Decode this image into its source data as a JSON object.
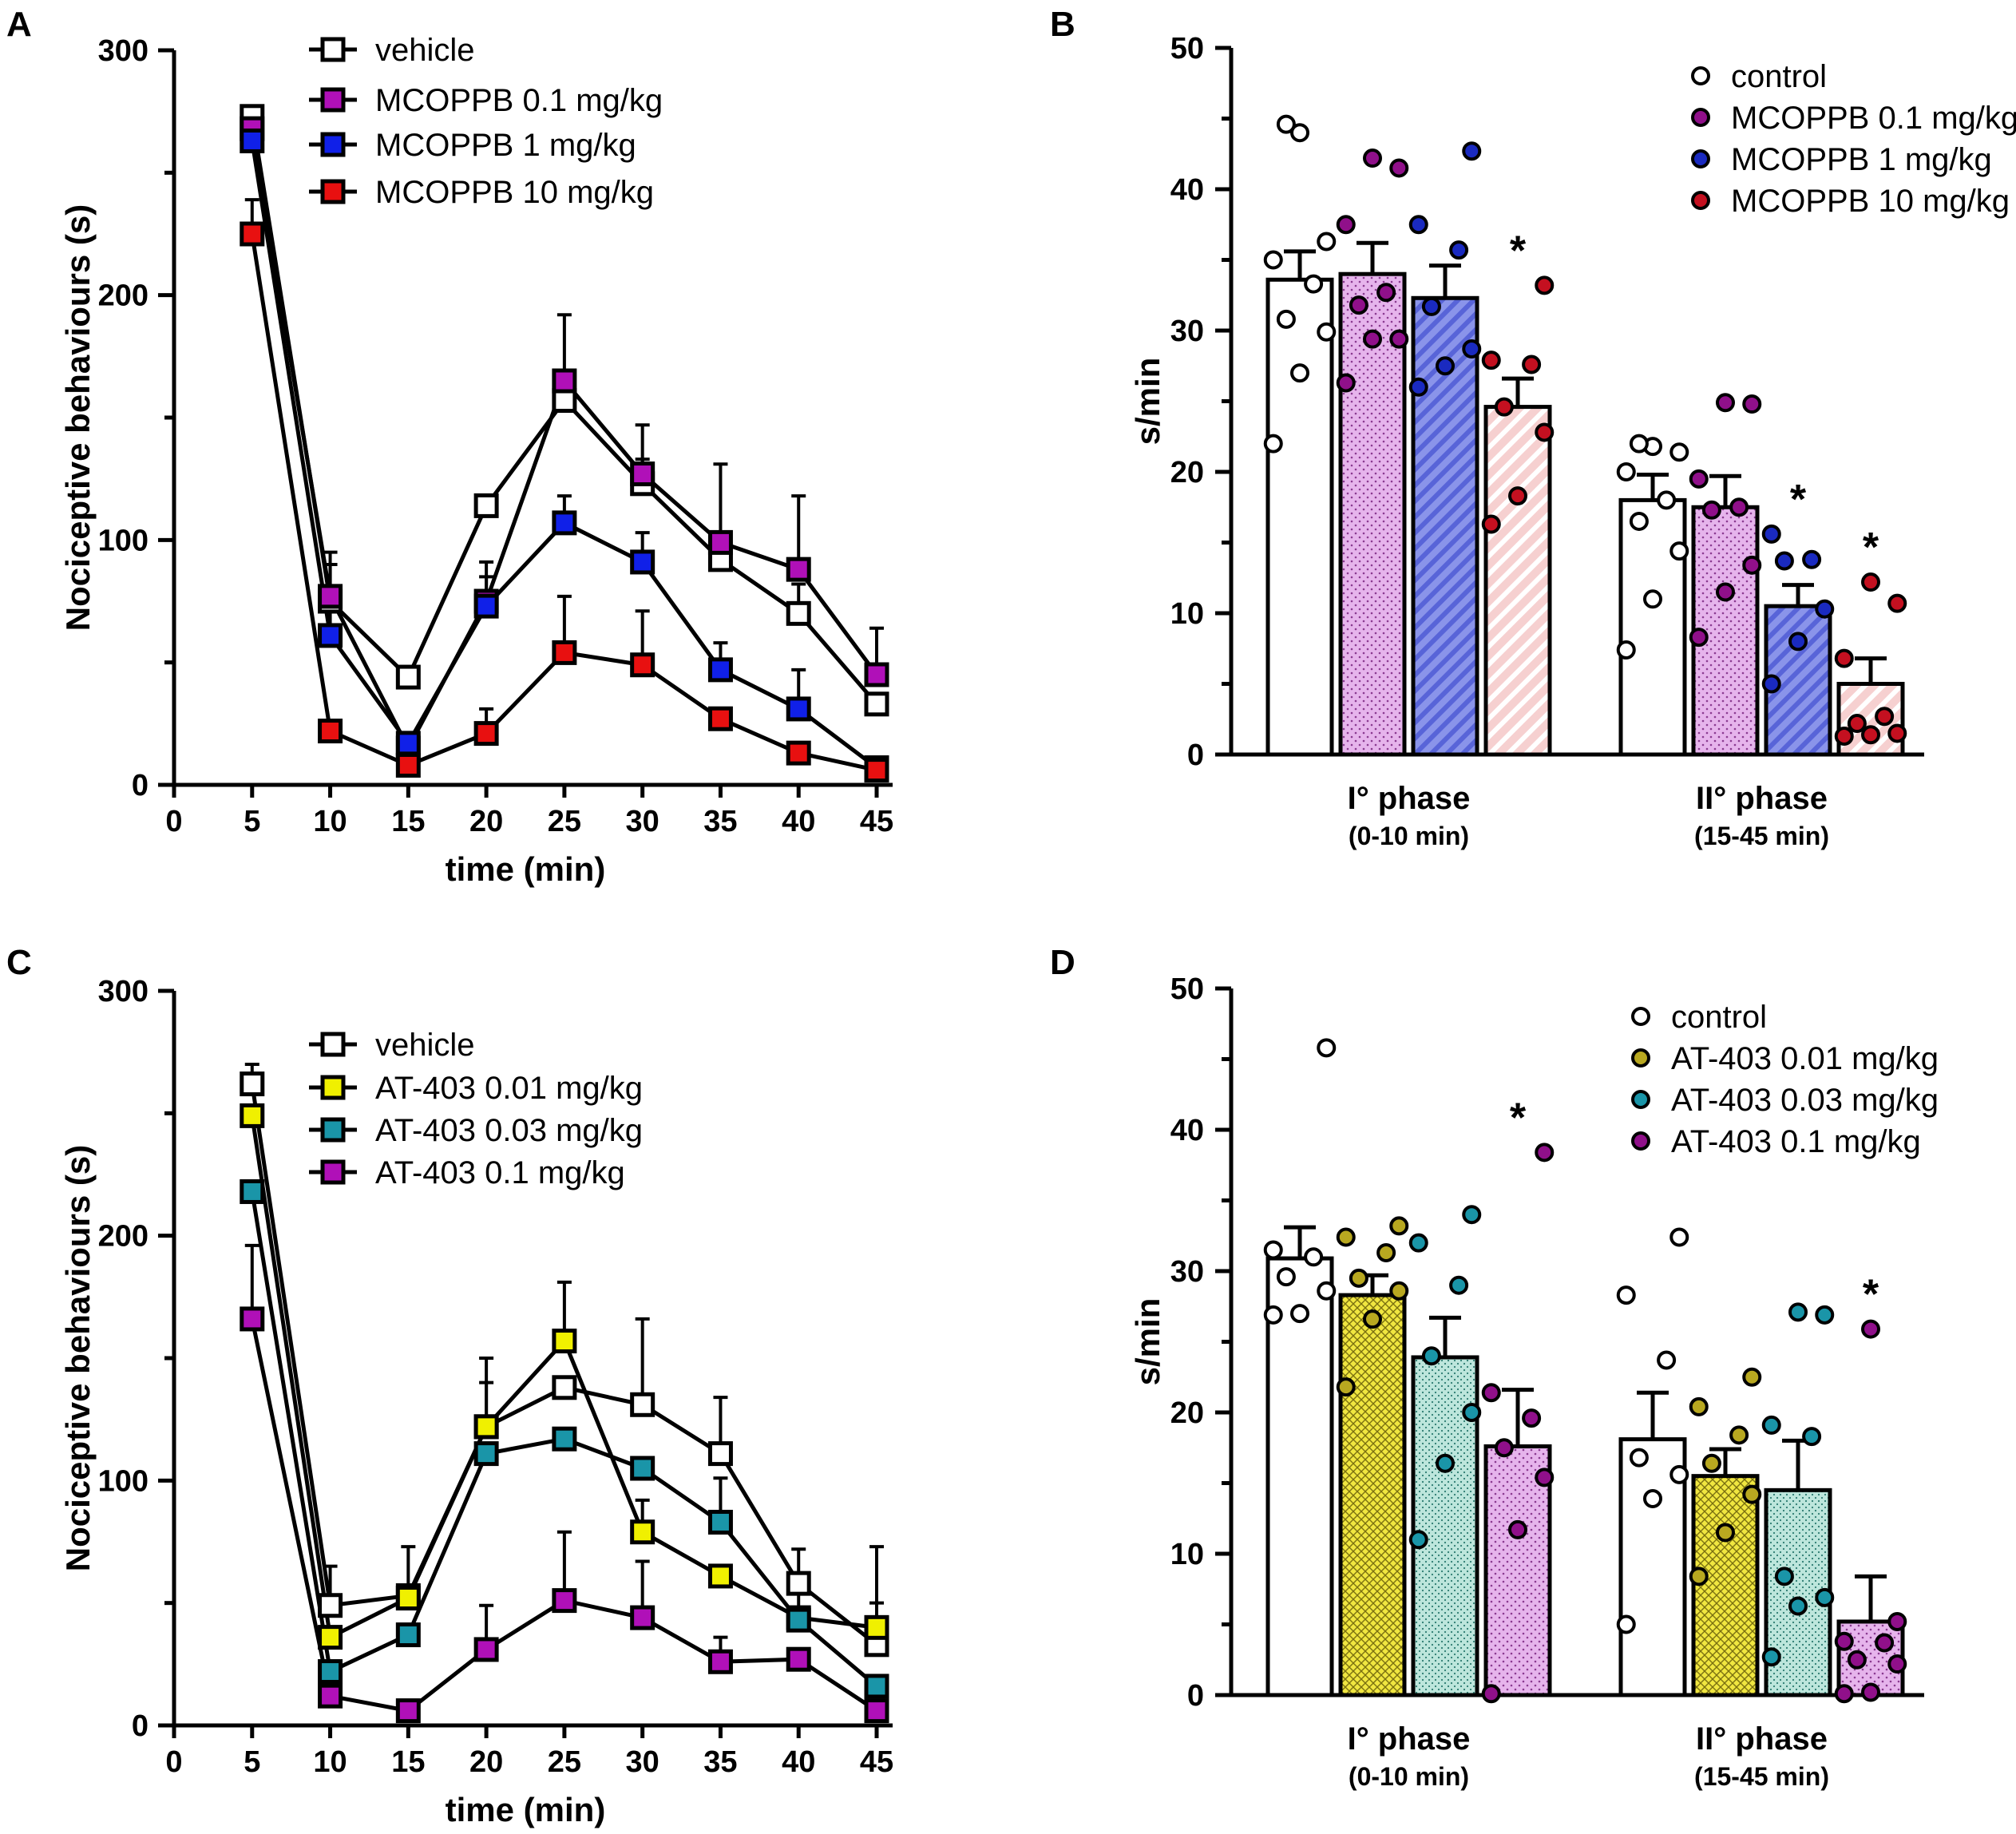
{
  "figure": {
    "colors": {
      "white": "#ffffff",
      "magenta": "#b010b8",
      "blue": "#1020e8",
      "red": "#e81010",
      "yellow": "#f0f000",
      "teal": "#1a95a8",
      "violet": "#90108a",
      "navy": "#1a2ac0",
      "darkred": "#c41020",
      "olive": "#b8a820",
      "pinkFill": "#e6b4ec",
      "blueFill": "#8a94ea",
      "salmonFill": "#f6bcbc",
      "yellowFill": "#f0e640",
      "tealFill": "#bde6dc"
    }
  },
  "chart_data": [
    {
      "panel": "A",
      "type": "line",
      "xlabel": "time (min)",
      "ylabel": "Nociceptive behaviours (s)",
      "xlim": [
        0,
        45
      ],
      "ylim": [
        0,
        300
      ],
      "xticks": [
        0,
        5,
        10,
        15,
        20,
        25,
        30,
        35,
        40,
        45
      ],
      "yticks": [
        0,
        100,
        200,
        300
      ],
      "x": [
        5,
        10,
        15,
        20,
        25,
        30,
        35,
        40,
        45
      ],
      "series": [
        {
          "name": "vehicle",
          "color": "#ffffff",
          "values": [
            273,
            75,
            44,
            114,
            157,
            123,
            92,
            70,
            33
          ],
          "err": [
            0,
            15,
            0,
            0,
            0,
            10,
            0,
            12,
            0
          ]
        },
        {
          "name": "MCOPPB 0.1 mg/kg",
          "color": "#b010b8",
          "values": [
            268,
            77,
            15,
            75,
            165,
            127,
            99,
            88,
            45
          ],
          "err": [
            0,
            18,
            0,
            10,
            27,
            20,
            32,
            30,
            19
          ]
        },
        {
          "name": "MCOPPB 1 mg/kg",
          "color": "#1020e8",
          "values": [
            263,
            61,
            17,
            73,
            107,
            91,
            47,
            31,
            7
          ],
          "err": [
            0,
            10,
            0,
            18,
            11,
            12,
            11,
            16,
            0
          ]
        },
        {
          "name": "MCOPPB 10 mg/kg",
          "color": "#e81010",
          "values": [
            225,
            22,
            8,
            21,
            54,
            49,
            27,
            13,
            6
          ],
          "err": [
            14,
            4,
            0,
            10,
            23,
            22,
            0,
            0,
            0
          ]
        }
      ]
    },
    {
      "panel": "B",
      "type": "bar",
      "ylabel": "s/min",
      "ylim": [
        0,
        50
      ],
      "yticks": [
        0,
        10,
        20,
        30,
        40,
        50
      ],
      "categories": [
        "I° phase",
        "II° phase"
      ],
      "category_sublabels": [
        "(0-10 min)",
        "(15-45 min)"
      ],
      "series": [
        {
          "name": "control",
          "color": "#ffffff",
          "dot_color": "#ffffff",
          "values": [
            33.6,
            18.0
          ],
          "sem": [
            2.0,
            1.8
          ],
          "points": [
            [
              22.0,
              27.0,
              29.9,
              30.8,
              33.3,
              35.0,
              36.3,
              44.0,
              44.6
            ],
            [
              7.4,
              11.0,
              14.4,
              16.5,
              18.0,
              20.0,
              21.4,
              21.8,
              22.0
            ]
          ],
          "sig": [
            false,
            false
          ]
        },
        {
          "name": "MCOPPB 0.1 mg/kg",
          "color": "#e6b4ec",
          "dot_color": "#90108a",
          "values": [
            34.0,
            17.5
          ],
          "sem": [
            2.2,
            2.2
          ],
          "points": [
            [
              26.3,
              29.4,
              29.4,
              31.8,
              32.7,
              37.5,
              41.5,
              42.2
            ],
            [
              8.3,
              11.5,
              13.4,
              17.3,
              17.5,
              19.5,
              24.8,
              24.9
            ]
          ],
          "sig": [
            false,
            false
          ]
        },
        {
          "name": "MCOPPB 1 mg/kg",
          "color": "#8a94ea",
          "dot_color": "#1a2ac0",
          "values": [
            32.3,
            10.5
          ],
          "sem": [
            2.3,
            1.5
          ],
          "points": [
            [
              26.0,
              27.5,
              28.7,
              31.7,
              35.7,
              37.5,
              42.7
            ],
            [
              5.0,
              8.0,
              10.3,
              13.7,
              13.8,
              15.6
            ]
          ],
          "sig": [
            false,
            true
          ]
        },
        {
          "name": "MCOPPB 10 mg/kg",
          "color": "#f6bcbc",
          "dot_color": "#c41020",
          "values": [
            24.6,
            5.0
          ],
          "sem": [
            2.0,
            1.8
          ],
          "points": [
            [
              16.3,
              18.3,
              22.8,
              24.6,
              27.6,
              27.9,
              33.2
            ],
            [
              1.3,
              1.4,
              1.5,
              2.2,
              2.7,
              6.8,
              10.7,
              12.2
            ]
          ],
          "sig": [
            true,
            true
          ]
        }
      ]
    },
    {
      "panel": "C",
      "type": "line",
      "xlabel": "time (min)",
      "ylabel": "Nociceptive behaviours (s)",
      "xlim": [
        0,
        45
      ],
      "ylim": [
        0,
        300
      ],
      "xticks": [
        0,
        5,
        10,
        15,
        20,
        25,
        30,
        35,
        40,
        45
      ],
      "yticks": [
        0,
        100,
        200,
        300
      ],
      "x": [
        5,
        10,
        15,
        20,
        25,
        30,
        35,
        40,
        45
      ],
      "series": [
        {
          "name": "vehicle",
          "color": "#ffffff",
          "values": [
            262,
            49,
            53,
            122,
            138,
            131,
            111,
            58,
            33
          ],
          "err": [
            8,
            16,
            20,
            18,
            0,
            35,
            23,
            14,
            17
          ]
        },
        {
          "name": "AT-403 0.01 mg/kg",
          "color": "#f0f000",
          "values": [
            249,
            36,
            52,
            122,
            157,
            79,
            61,
            44,
            40
          ],
          "err": [
            0,
            0,
            0,
            28,
            24,
            13,
            0,
            0,
            33
          ]
        },
        {
          "name": "AT-403 0.03 mg/kg",
          "color": "#1a95a8",
          "values": [
            218,
            22,
            37,
            111,
            117,
            105,
            83,
            43,
            16
          ],
          "err": [
            0,
            0,
            0,
            0,
            0,
            0,
            18,
            12,
            0
          ]
        },
        {
          "name": "AT-403 0.1 mg/kg",
          "color": "#b010b8",
          "values": [
            166,
            12,
            6,
            31,
            51,
            44,
            26,
            27,
            6
          ],
          "err": [
            30,
            0,
            0,
            18,
            28,
            23,
            10,
            0,
            0
          ]
        }
      ]
    },
    {
      "panel": "D",
      "type": "bar",
      "ylabel": "s/min",
      "ylim": [
        0,
        50
      ],
      "yticks": [
        0,
        10,
        20,
        30,
        40,
        50
      ],
      "categories": [
        "I° phase",
        "II° phase"
      ],
      "category_sublabels": [
        "(0-10 min)",
        "(15-45 min)"
      ],
      "series": [
        {
          "name": "control",
          "color": "#ffffff",
          "dot_color": "#ffffff",
          "values": [
            30.9,
            18.1
          ],
          "sem": [
            2.2,
            3.3
          ],
          "points": [
            [
              26.9,
              27.0,
              28.6,
              29.6,
              31.0,
              31.5,
              45.8
            ],
            [
              5.0,
              13.9,
              15.6,
              16.8,
              23.7,
              28.3,
              32.4
            ]
          ],
          "sig": [
            false,
            false
          ]
        },
        {
          "name": "AT-403 0.01 mg/kg",
          "color": "#f0e640",
          "dot_color": "#b8a820",
          "values": [
            28.3,
            15.5
          ],
          "sem": [
            1.4,
            1.9
          ],
          "points": [
            [
              21.8,
              26.6,
              28.6,
              29.5,
              31.3,
              32.4,
              33.2
            ],
            [
              8.4,
              11.5,
              14.2,
              16.4,
              18.4,
              20.4,
              22.5
            ]
          ],
          "sig": [
            false,
            false
          ]
        },
        {
          "name": "AT-403 0.03 mg/kg",
          "color": "#bde6dc",
          "dot_color": "#1a95a8",
          "values": [
            23.9,
            14.5
          ],
          "sem": [
            2.8,
            3.5
          ],
          "points": [
            [
              11.0,
              16.4,
              20.0,
              24.0,
              29.0,
              32.0,
              34.0
            ],
            [
              2.7,
              6.3,
              6.9,
              8.4,
              18.3,
              19.1,
              26.9,
              27.1
            ]
          ],
          "sig": [
            false,
            false
          ]
        },
        {
          "name": "AT-403 0.1 mg/kg",
          "color": "#e6b4ec",
          "dot_color": "#90108a",
          "values": [
            17.6,
            5.2
          ],
          "sem": [
            4.0,
            3.2
          ],
          "points": [
            [
              0.1,
              11.7,
              15.4,
              17.5,
              19.6,
              21.4,
              38.4
            ],
            [
              0.1,
              0.2,
              2.2,
              2.5,
              3.7,
              3.8,
              5.2,
              25.9
            ]
          ],
          "sig": [
            true,
            true
          ]
        }
      ]
    }
  ]
}
